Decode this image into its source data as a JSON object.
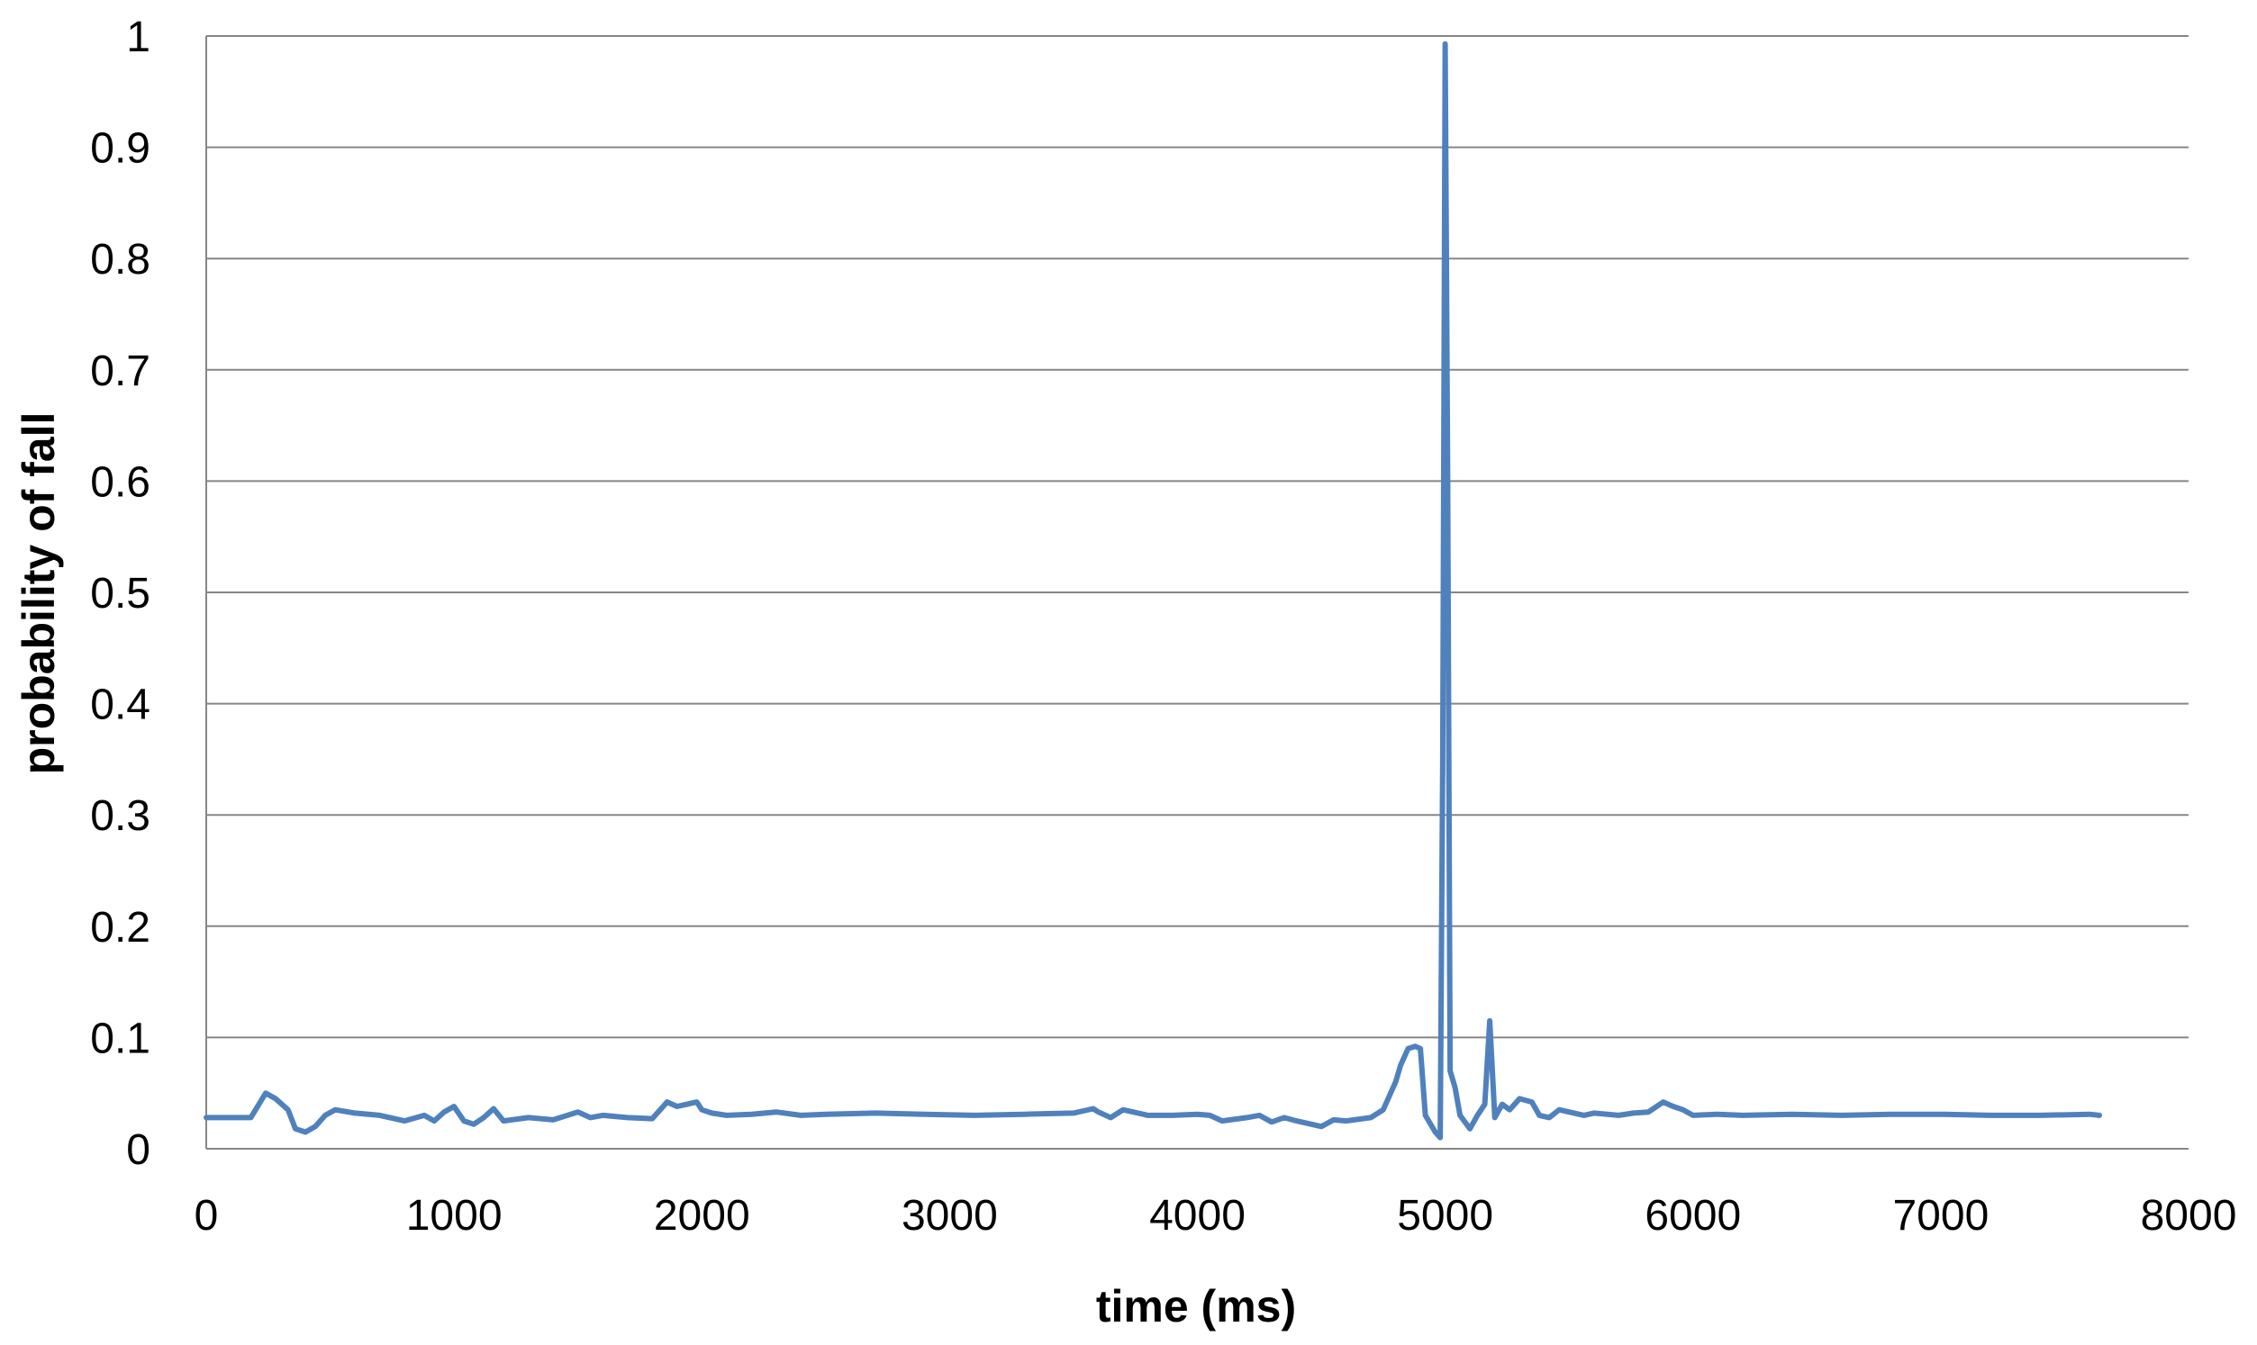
{
  "chart_data": {
    "type": "line",
    "title": "",
    "xlabel": "time (ms)",
    "ylabel": "probability of fall",
    "xlim": [
      0,
      8000
    ],
    "ylim": [
      0,
      1
    ],
    "x_ticks": [
      "0",
      "1000",
      "2000",
      "3000",
      "4000",
      "5000",
      "6000",
      "7000",
      "8000"
    ],
    "y_ticks": [
      "0",
      "0.1",
      "0.2",
      "0.3",
      "0.4",
      "0.5",
      "0.6",
      "0.7",
      "0.8",
      "0.9",
      "1"
    ],
    "grid": "horizontal",
    "legend": "none",
    "colors": {
      "series": "#4f81bd",
      "grid": "#868686",
      "axis": "#868686"
    },
    "series": [
      {
        "x": [
          0,
          100,
          180,
          240,
          280,
          330,
          360,
          400,
          440,
          480,
          520,
          600,
          700,
          800,
          880,
          920,
          960,
          1000,
          1040,
          1080,
          1120,
          1160,
          1200,
          1300,
          1400,
          1500,
          1550,
          1600,
          1700,
          1800,
          1860,
          1900,
          1940,
          1980,
          2000,
          2040,
          2100,
          2200,
          2300,
          2400,
          2500,
          2700,
          2900,
          3100,
          3300,
          3500,
          3580,
          3600,
          3650,
          3700,
          3800,
          3900,
          4000,
          4050,
          4100,
          4200,
          4250,
          4300,
          4350,
          4400,
          4500,
          4550,
          4600,
          4700,
          4750,
          4800,
          4820,
          4850,
          4880,
          4900,
          4920,
          4960,
          4980,
          4990,
          5000,
          5010,
          5020,
          5040,
          5060,
          5100,
          5130,
          5160,
          5180,
          5200,
          5230,
          5260,
          5300,
          5350,
          5380,
          5420,
          5460,
          5500,
          5560,
          5600,
          5700,
          5760,
          5820,
          5880,
          5920,
          5960,
          6000,
          6100,
          6200,
          6400,
          6600,
          6800,
          7000,
          7200,
          7400,
          7600,
          7640
        ],
        "y": [
          0.028,
          0.028,
          0.028,
          0.05,
          0.045,
          0.035,
          0.018,
          0.015,
          0.02,
          0.03,
          0.035,
          0.032,
          0.03,
          0.025,
          0.03,
          0.025,
          0.033,
          0.038,
          0.025,
          0.022,
          0.028,
          0.036,
          0.025,
          0.028,
          0.026,
          0.033,
          0.028,
          0.03,
          0.028,
          0.027,
          0.042,
          0.038,
          0.04,
          0.042,
          0.035,
          0.032,
          0.03,
          0.031,
          0.033,
          0.03,
          0.031,
          0.032,
          0.031,
          0.03,
          0.031,
          0.032,
          0.036,
          0.033,
          0.028,
          0.035,
          0.03,
          0.03,
          0.031,
          0.03,
          0.025,
          0.028,
          0.03,
          0.024,
          0.028,
          0.025,
          0.02,
          0.026,
          0.025,
          0.028,
          0.035,
          0.06,
          0.075,
          0.09,
          0.092,
          0.09,
          0.03,
          0.015,
          0.01,
          0.35,
          0.993,
          0.6,
          0.07,
          0.055,
          0.03,
          0.018,
          0.03,
          0.04,
          0.115,
          0.028,
          0.04,
          0.035,
          0.045,
          0.042,
          0.03,
          0.028,
          0.035,
          0.033,
          0.03,
          0.032,
          0.03,
          0.032,
          0.033,
          0.042,
          0.038,
          0.035,
          0.03,
          0.031,
          0.03,
          0.031,
          0.03,
          0.031,
          0.031,
          0.03,
          0.03,
          0.031,
          0.03
        ]
      }
    ]
  }
}
